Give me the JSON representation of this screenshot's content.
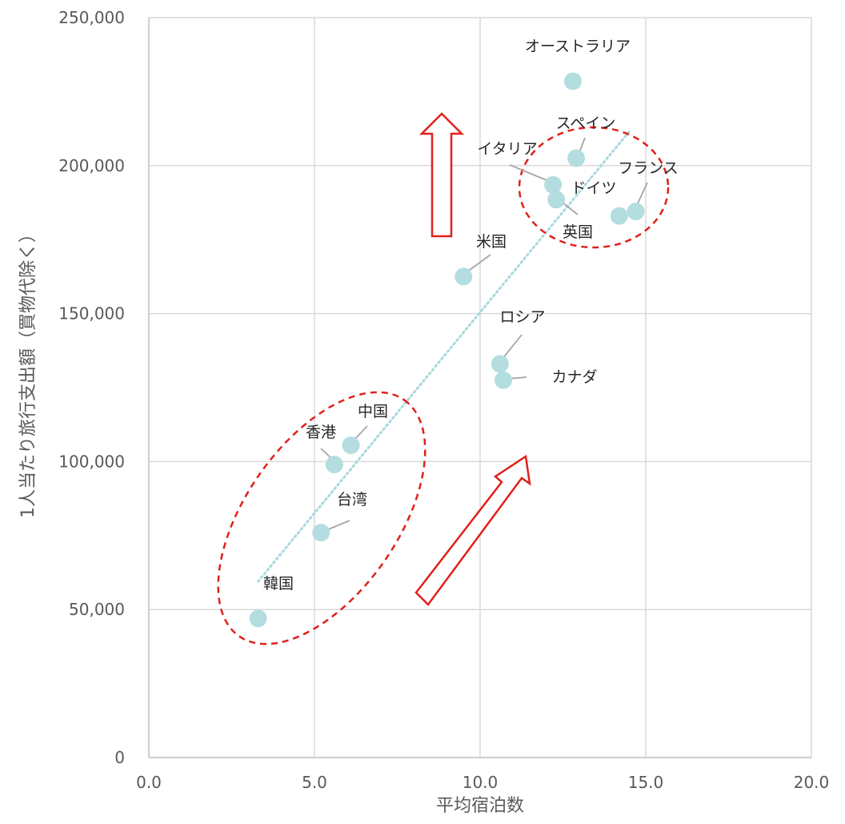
{
  "chart_data": {
    "type": "scatter",
    "title": "",
    "xlabel": "平均宿泊数",
    "ylabel": "1人当たり旅行支出額（買物代除く）",
    "xlim": [
      0,
      20
    ],
    "ylim": [
      0,
      250000
    ],
    "x_ticks": [
      "0.0",
      "5.0",
      "10.0",
      "15.0",
      "20.0"
    ],
    "y_ticks": [
      "0",
      "50,000",
      "100,000",
      "150,000",
      "200,000",
      "250,000"
    ],
    "grid": true,
    "legend": "none",
    "marker_color": "#b4dde0",
    "trendline": {
      "style": "dotted",
      "color": "#a9d8dc",
      "from": [
        3.3,
        59500
      ],
      "to": [
        14.5,
        211500
      ]
    },
    "points": [
      {
        "label": "韓国",
        "x": 3.3,
        "y": 47000
      },
      {
        "label": "台湾",
        "x": 5.2,
        "y": 76000
      },
      {
        "label": "香港",
        "x": 5.6,
        "y": 99000
      },
      {
        "label": "中国",
        "x": 6.1,
        "y": 105500
      },
      {
        "label": "米国",
        "x": 9.5,
        "y": 162500
      },
      {
        "label": "ロシア",
        "x": 10.6,
        "y": 133000
      },
      {
        "label": "カナダ",
        "x": 10.7,
        "y": 127500
      },
      {
        "label": "オーストラリア",
        "x": 12.8,
        "y": 228500
      },
      {
        "label": "スペイン",
        "x": 12.9,
        "y": 202500
      },
      {
        "label": "イタリア",
        "x": 12.2,
        "y": 193500
      },
      {
        "label": "ドイツ",
        "x": 12.3,
        "y": 188500
      },
      {
        "label": "英国",
        "x": 14.2,
        "y": 183000
      },
      {
        "label": "フランス",
        "x": 14.7,
        "y": 184500
      }
    ],
    "annotations": {
      "ellipse_color": "#e0201b",
      "arrow_color": "#e0201b"
    }
  }
}
